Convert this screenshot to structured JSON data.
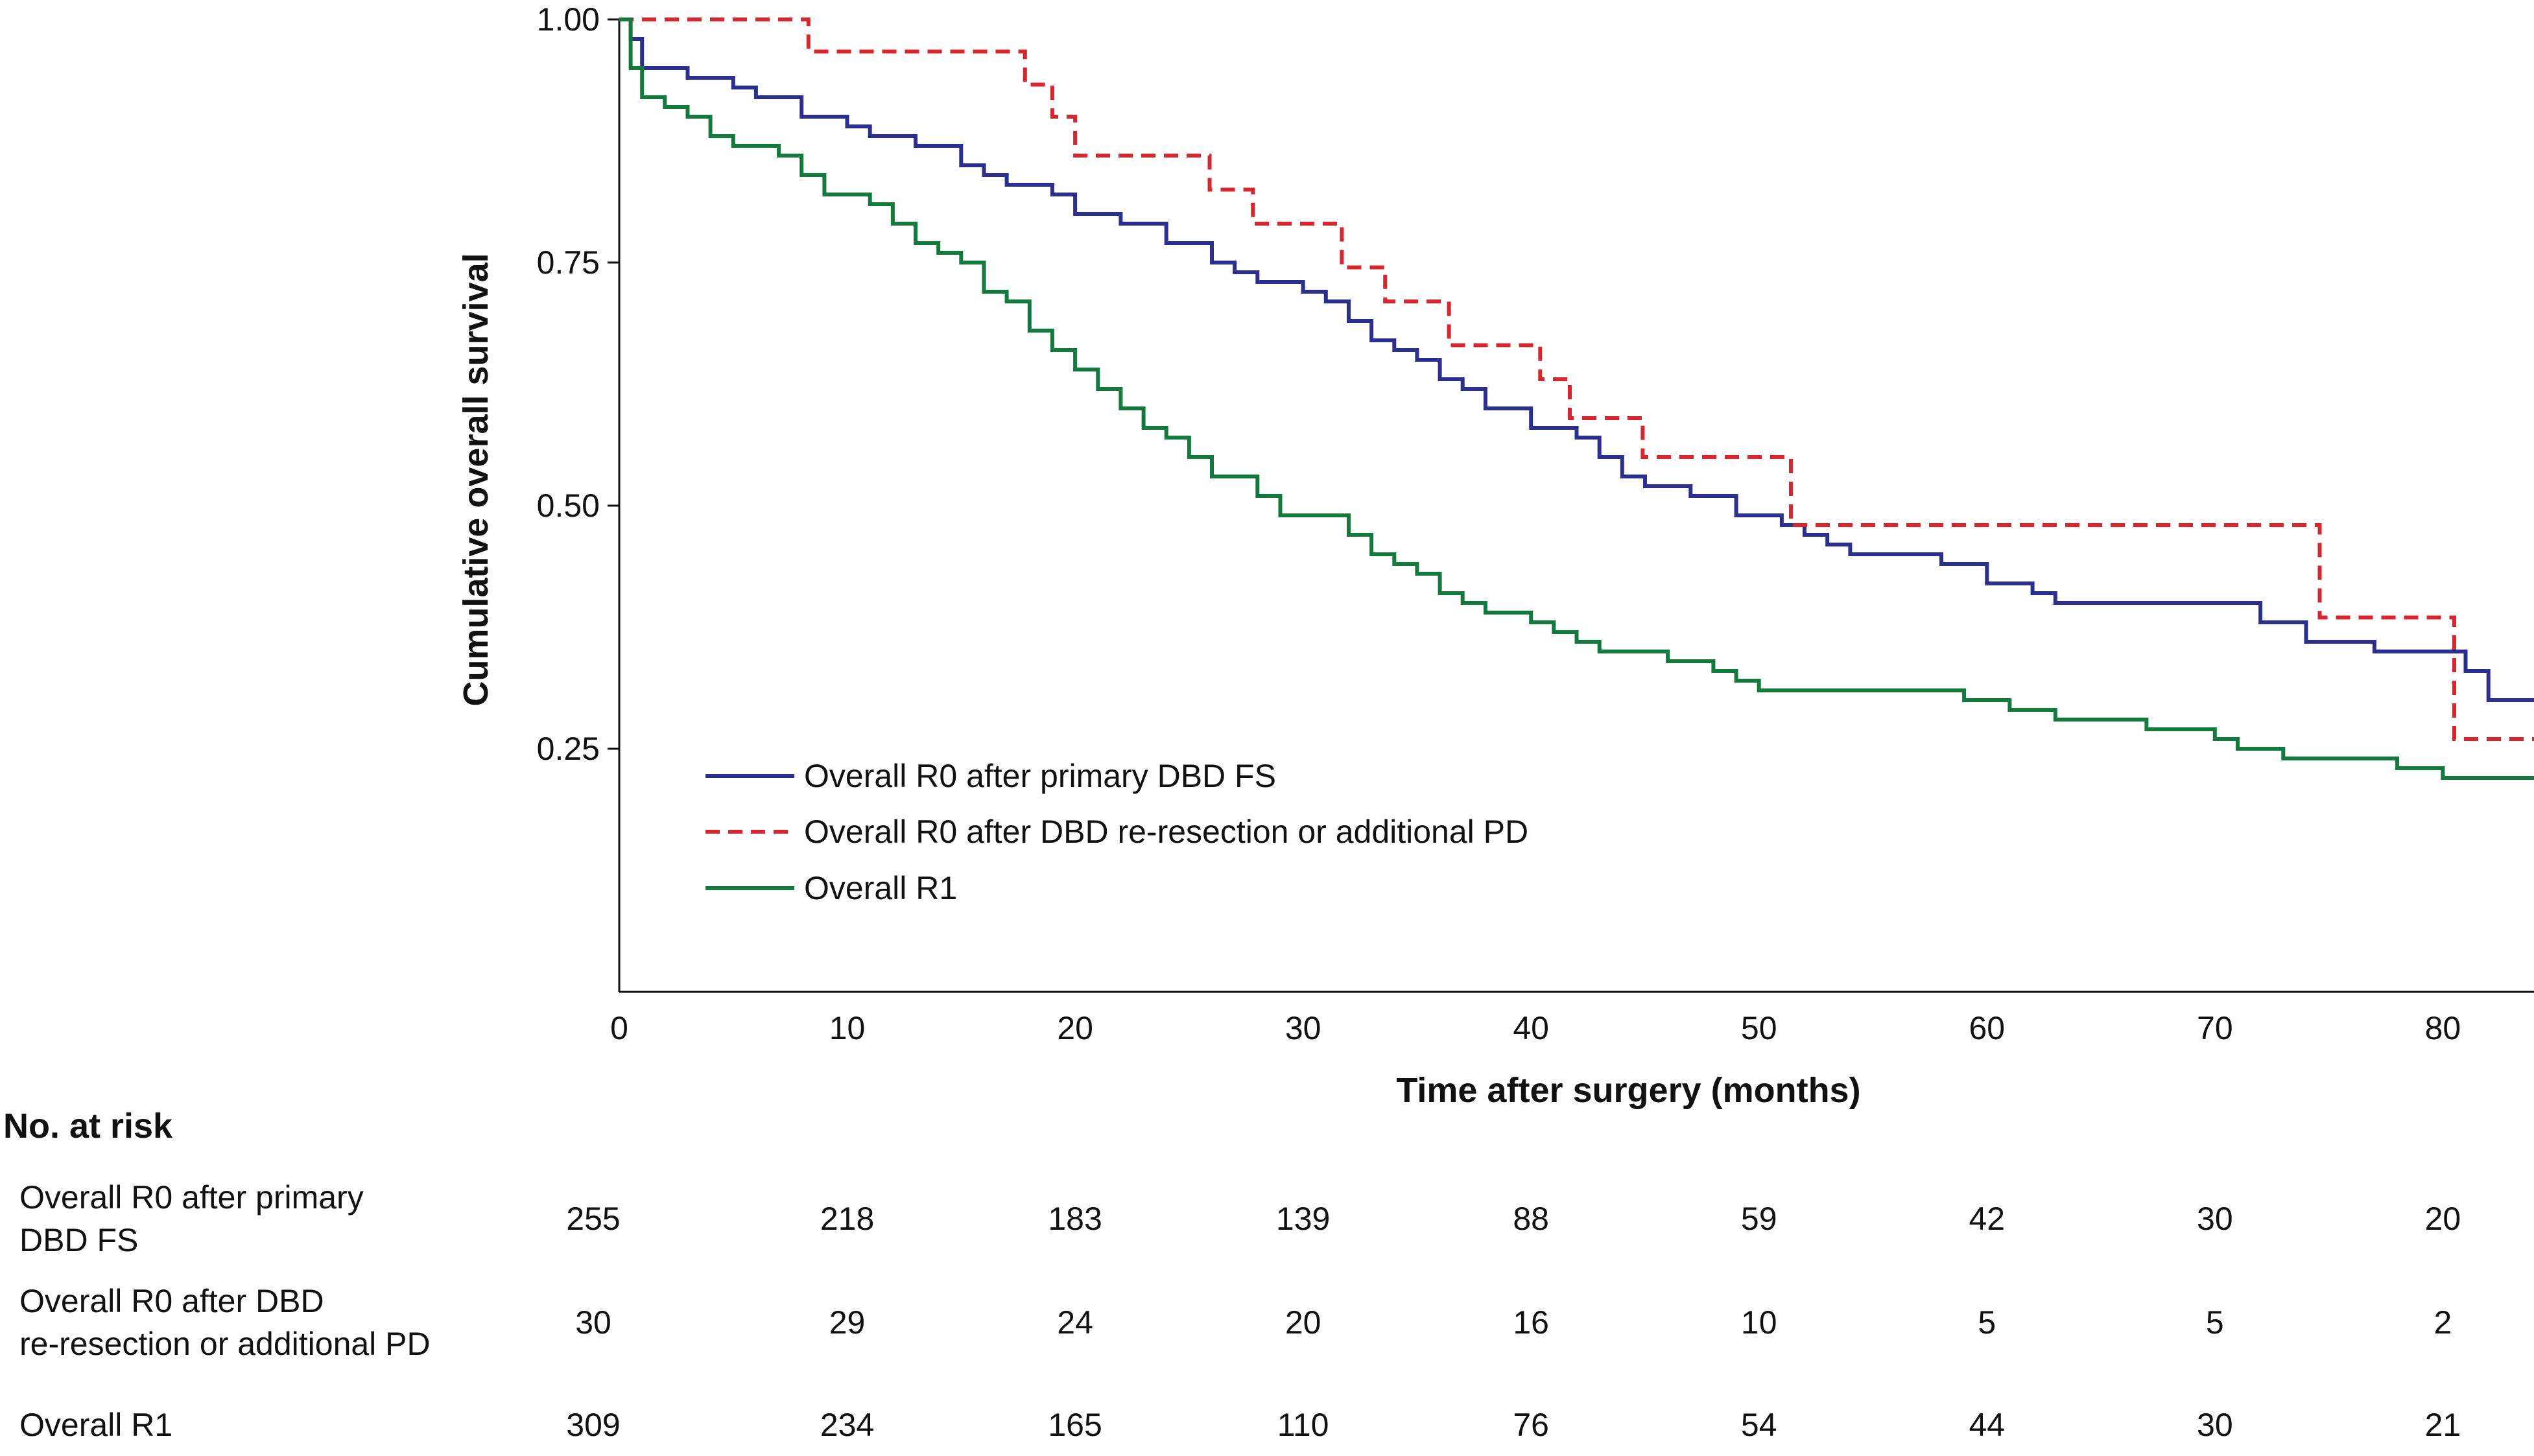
{
  "chart_data": {
    "type": "line",
    "subtype": "kaplan-meier step",
    "title": "",
    "xlabel": "Time after surgery (months)",
    "ylabel": "Cumulative overall survival",
    "xlim": [
      0,
      84
    ],
    "ylim": [
      0,
      1.0
    ],
    "x_ticks": [
      0,
      10,
      20,
      30,
      40,
      50,
      60,
      70,
      80
    ],
    "x_tick_labels": [
      "0",
      "10",
      "20",
      "30",
      "40",
      "50",
      "60",
      "70",
      "80"
    ],
    "y_ticks": [
      0.25,
      0.5,
      0.75,
      1.0
    ],
    "y_tick_labels": [
      "0.25",
      "0.50",
      "0.75",
      "1.00"
    ],
    "grid": false,
    "legend_position": "bottom-left inside plot",
    "series": [
      {
        "name": "Overall R0 after primary DBD FS",
        "color": "#2b2f8f",
        "style": "solid",
        "x": [
          0,
          0.5,
          1,
          3,
          5,
          6,
          8,
          10,
          11,
          13,
          15,
          16,
          17,
          19,
          20,
          22,
          24,
          26,
          27,
          28,
          30,
          31,
          32,
          33,
          34,
          35,
          36,
          37,
          38,
          40,
          42,
          43,
          44,
          45,
          47,
          49,
          51,
          52,
          53,
          54,
          55,
          56,
          58,
          60,
          62,
          63,
          66,
          69,
          72,
          74,
          77,
          79,
          81,
          82,
          84
        ],
        "y": [
          1.0,
          0.98,
          0.95,
          0.94,
          0.93,
          0.92,
          0.9,
          0.89,
          0.88,
          0.87,
          0.85,
          0.84,
          0.83,
          0.82,
          0.8,
          0.79,
          0.77,
          0.75,
          0.74,
          0.73,
          0.72,
          0.71,
          0.69,
          0.67,
          0.66,
          0.65,
          0.63,
          0.62,
          0.6,
          0.58,
          0.57,
          0.55,
          0.53,
          0.52,
          0.51,
          0.49,
          0.48,
          0.47,
          0.46,
          0.45,
          0.45,
          0.45,
          0.44,
          0.42,
          0.41,
          0.4,
          0.4,
          0.4,
          0.38,
          0.36,
          0.35,
          0.35,
          0.33,
          0.3,
          0.3
        ]
      },
      {
        "name": "Overall R0 after DBD re-resection or additional PD",
        "color": "#d9262e",
        "style": "dashed",
        "x": [
          0,
          8.3,
          17.8,
          19,
          20,
          25.9,
          27.8,
          31.7,
          33.6,
          36.4,
          40.4,
          41.7,
          44.9,
          51.4,
          74.6,
          80.5,
          84
        ],
        "y": [
          1.0,
          0.967,
          0.933,
          0.9,
          0.86,
          0.825,
          0.79,
          0.745,
          0.71,
          0.665,
          0.63,
          0.59,
          0.55,
          0.48,
          0.385,
          0.26,
          0.26
        ]
      },
      {
        "name": "Overall R1",
        "color": "#137a3e",
        "style": "solid",
        "x": [
          0,
          0.5,
          1,
          2,
          3,
          4,
          5,
          7,
          8,
          9,
          10,
          11,
          12,
          13,
          14,
          15,
          16,
          17,
          18,
          19,
          20,
          21,
          22,
          23,
          24,
          25,
          26,
          27,
          28,
          29,
          30,
          32,
          33,
          34,
          35,
          36,
          37,
          38,
          40,
          41,
          42,
          43,
          44,
          46,
          48,
          49,
          50,
          54,
          58,
          59,
          60,
          61,
          62,
          63,
          65,
          67,
          68,
          70,
          71,
          72,
          73,
          75,
          78,
          80,
          84
        ],
        "y": [
          1.0,
          0.95,
          0.92,
          0.91,
          0.9,
          0.88,
          0.87,
          0.86,
          0.84,
          0.82,
          0.82,
          0.81,
          0.79,
          0.77,
          0.76,
          0.75,
          0.72,
          0.71,
          0.68,
          0.66,
          0.64,
          0.62,
          0.6,
          0.58,
          0.57,
          0.55,
          0.53,
          0.53,
          0.51,
          0.49,
          0.49,
          0.47,
          0.45,
          0.44,
          0.43,
          0.41,
          0.4,
          0.39,
          0.38,
          0.37,
          0.36,
          0.35,
          0.35,
          0.34,
          0.33,
          0.32,
          0.31,
          0.31,
          0.31,
          0.3,
          0.3,
          0.29,
          0.29,
          0.28,
          0.28,
          0.27,
          0.27,
          0.26,
          0.25,
          0.25,
          0.24,
          0.24,
          0.23,
          0.22,
          0.22
        ]
      }
    ],
    "risk_table": {
      "title": "No. at risk",
      "times": [
        0,
        10,
        20,
        30,
        40,
        50,
        60,
        70,
        80
      ],
      "rows": [
        {
          "label": [
            "Overall R0 after primary",
            "DBD FS"
          ],
          "values": [
            255,
            218,
            183,
            139,
            88,
            59,
            42,
            30,
            20
          ]
        },
        {
          "label": [
            "Overall R0 after DBD",
            "re-resection or additional PD"
          ],
          "values": [
            30,
            29,
            24,
            20,
            16,
            10,
            5,
            5,
            2
          ]
        },
        {
          "label": [
            "Overall R1"
          ],
          "values": [
            309,
            234,
            165,
            110,
            76,
            54,
            44,
            30,
            21
          ]
        }
      ]
    }
  }
}
